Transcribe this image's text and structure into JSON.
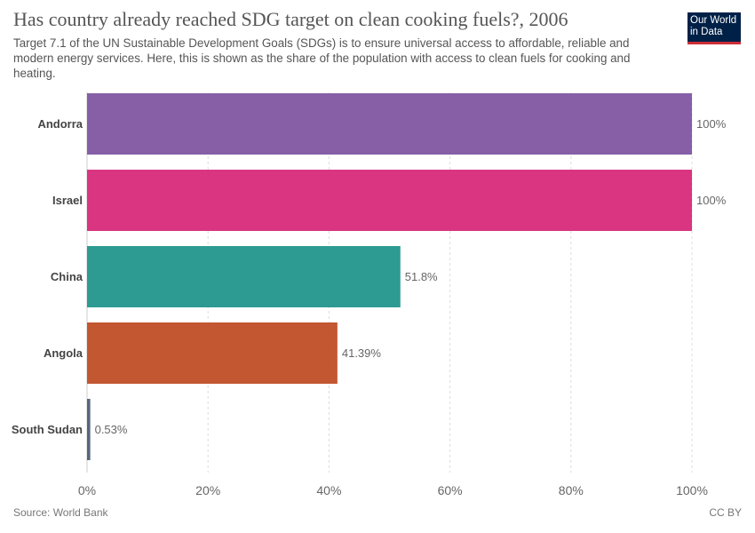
{
  "header": {
    "title": "Has country already reached SDG target on clean cooking fuels?, 2006",
    "subtitle": "Target 7.1 of the UN Sustainable Development Goals (SDGs) is to ensure universal access to affordable, reliable and modern energy services. Here, this is shown as the share of the population with access to clean fuels for cooking and heating."
  },
  "logo": {
    "line1": "Our World",
    "line2": "in Data",
    "bg_color": "#002147",
    "accent_color": "#cd2e38"
  },
  "footer": {
    "source": "Source: World Bank",
    "license": "CC BY"
  },
  "chart_data": {
    "type": "bar",
    "orientation": "horizontal",
    "categories": [
      "Andorra",
      "Israel",
      "China",
      "Angola",
      "South Sudan"
    ],
    "values": [
      100,
      100,
      51.8,
      41.39,
      0.53
    ],
    "value_labels": [
      "100%",
      "100%",
      "51.8%",
      "41.39%",
      "0.53%"
    ],
    "colors": [
      "#7f56a1",
      "#d72a7a",
      "#22968c",
      "#bf4e27",
      "#4c5f75"
    ],
    "xlim": [
      0,
      100
    ],
    "xticks": [
      0,
      20,
      40,
      60,
      80,
      100
    ],
    "xtick_labels": [
      "0%",
      "20%",
      "40%",
      "60%",
      "80%",
      "100%"
    ],
    "grid": true,
    "legend": "none"
  }
}
